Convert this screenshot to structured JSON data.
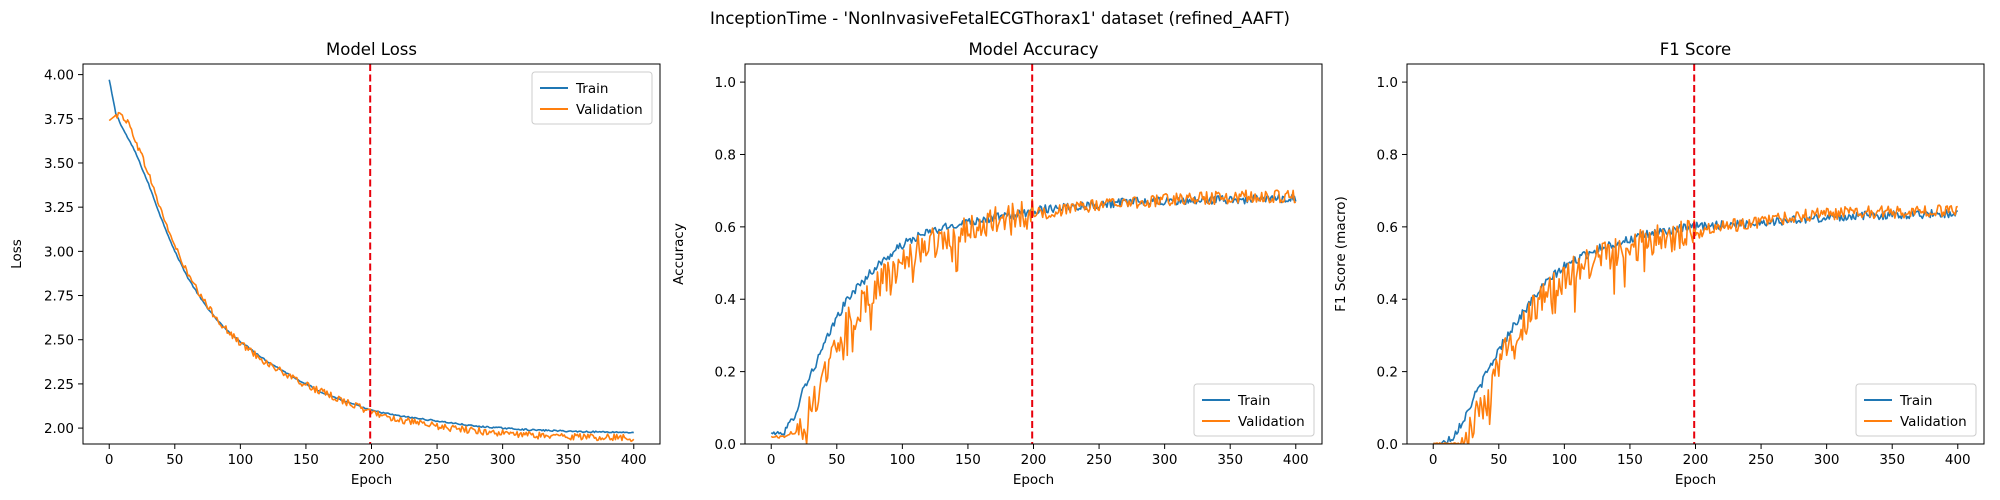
{
  "figure": {
    "suptitle": "InceptionTime - 'NonInvasiveFetalECGThorax1' dataset (refined_AAFT)"
  },
  "colors": {
    "train": "#1f77b4",
    "validation": "#ff7f0e",
    "marker_line": "#e8000b"
  },
  "chart_data": [
    {
      "type": "line",
      "title": "Model Loss",
      "xlabel": "Epoch",
      "ylabel": "Loss",
      "xlim": [
        -20,
        420
      ],
      "ylim": [
        1.91,
        4.06
      ],
      "xticks": [
        0,
        50,
        100,
        150,
        200,
        250,
        300,
        350,
        400
      ],
      "yticks": [
        2.0,
        2.25,
        2.5,
        2.75,
        3.0,
        3.25,
        3.5,
        3.75,
        4.0
      ],
      "ytick_decimals": 2,
      "vline_x": 199,
      "legend": "top-right",
      "grid": false,
      "series": [
        {
          "name": "Train",
          "x": [
            0,
            5,
            10,
            20,
            30,
            40,
            50,
            60,
            70,
            80,
            90,
            100,
            120,
            140,
            160,
            180,
            200,
            220,
            240,
            260,
            280,
            300,
            320,
            340,
            360,
            380,
            400
          ],
          "values": [
            3.97,
            3.78,
            3.7,
            3.56,
            3.38,
            3.18,
            3.0,
            2.85,
            2.73,
            2.63,
            2.55,
            2.49,
            2.38,
            2.29,
            2.21,
            2.15,
            2.1,
            2.07,
            2.05,
            2.03,
            2.01,
            2.0,
            1.99,
            1.985,
            1.98,
            1.978,
            1.975
          ]
        },
        {
          "name": "Validation",
          "x": [
            0,
            5,
            10,
            15,
            20,
            30,
            40,
            50,
            60,
            70,
            80,
            90,
            100,
            120,
            140,
            160,
            180,
            200,
            220,
            240,
            260,
            280,
            300,
            320,
            340,
            360,
            380,
            400
          ],
          "values": [
            3.74,
            3.77,
            3.77,
            3.72,
            3.63,
            3.44,
            3.22,
            3.03,
            2.87,
            2.74,
            2.64,
            2.55,
            2.48,
            2.37,
            2.28,
            2.21,
            2.15,
            2.09,
            2.05,
            2.02,
            2.0,
            1.985,
            1.97,
            1.96,
            1.955,
            1.95,
            1.948,
            1.945
          ]
        }
      ]
    },
    {
      "type": "line",
      "title": "Model Accuracy",
      "xlabel": "Epoch",
      "ylabel": "Accuracy",
      "xlim": [
        -20,
        420
      ],
      "ylim": [
        0,
        1.05
      ],
      "xticks": [
        0,
        50,
        100,
        150,
        200,
        250,
        300,
        350,
        400
      ],
      "yticks": [
        0.0,
        0.2,
        0.4,
        0.6,
        0.8,
        1.0
      ],
      "ytick_decimals": 1,
      "vline_x": 199,
      "legend": "bottom-right",
      "grid": false,
      "series": [
        {
          "name": "Train",
          "x": [
            0,
            5,
            10,
            15,
            20,
            25,
            30,
            40,
            50,
            60,
            70,
            80,
            90,
            100,
            110,
            120,
            130,
            140,
            150,
            160,
            170,
            180,
            190,
            200,
            220,
            240,
            260,
            280,
            300,
            320,
            340,
            360,
            380,
            400
          ],
          "values": [
            0.03,
            0.03,
            0.03,
            0.06,
            0.1,
            0.16,
            0.19,
            0.27,
            0.35,
            0.41,
            0.45,
            0.49,
            0.52,
            0.55,
            0.57,
            0.585,
            0.595,
            0.605,
            0.615,
            0.62,
            0.625,
            0.63,
            0.635,
            0.645,
            0.655,
            0.66,
            0.665,
            0.67,
            0.67,
            0.672,
            0.675,
            0.675,
            0.677,
            0.68
          ]
        },
        {
          "name": "Validation",
          "x": [
            0,
            5,
            10,
            15,
            20,
            25,
            30,
            40,
            50,
            60,
            70,
            80,
            90,
            100,
            110,
            120,
            130,
            140,
            150,
            160,
            170,
            180,
            190,
            200,
            220,
            240,
            260,
            280,
            300,
            320,
            340,
            360,
            380,
            400
          ],
          "values": [
            0.02,
            0.02,
            0.02,
            0.03,
            0.03,
            0.06,
            0.1,
            0.18,
            0.27,
            0.34,
            0.39,
            0.44,
            0.47,
            0.5,
            0.53,
            0.55,
            0.57,
            0.58,
            0.6,
            0.61,
            0.62,
            0.625,
            0.63,
            0.635,
            0.645,
            0.655,
            0.665,
            0.67,
            0.675,
            0.68,
            0.68,
            0.685,
            0.685,
            0.685
          ]
        }
      ]
    },
    {
      "type": "line",
      "title": "F1 Score",
      "xlabel": "Epoch",
      "ylabel": "F1 Score (macro)",
      "xlim": [
        -20,
        420
      ],
      "ylim": [
        0,
        1.05
      ],
      "xticks": [
        0,
        50,
        100,
        150,
        200,
        250,
        300,
        350,
        400
      ],
      "yticks": [
        0.0,
        0.2,
        0.4,
        0.6,
        0.8,
        1.0
      ],
      "ytick_decimals": 1,
      "vline_x": 199,
      "legend": "bottom-right",
      "grid": false,
      "series": [
        {
          "name": "Train",
          "x": [
            0,
            5,
            10,
            15,
            20,
            25,
            30,
            40,
            50,
            60,
            70,
            80,
            90,
            100,
            110,
            120,
            130,
            140,
            150,
            160,
            170,
            180,
            190,
            200,
            220,
            240,
            260,
            280,
            300,
            320,
            340,
            360,
            380,
            400
          ],
          "values": [
            0.0,
            0.0,
            0.01,
            0.02,
            0.05,
            0.08,
            0.12,
            0.19,
            0.26,
            0.32,
            0.37,
            0.42,
            0.46,
            0.49,
            0.51,
            0.53,
            0.545,
            0.555,
            0.565,
            0.575,
            0.585,
            0.59,
            0.595,
            0.6,
            0.605,
            0.61,
            0.615,
            0.62,
            0.625,
            0.63,
            0.632,
            0.634,
            0.636,
            0.638
          ]
        },
        {
          "name": "Validation",
          "x": [
            0,
            5,
            10,
            15,
            20,
            25,
            30,
            40,
            50,
            60,
            70,
            80,
            90,
            100,
            110,
            120,
            130,
            140,
            150,
            160,
            170,
            180,
            190,
            200,
            220,
            240,
            260,
            280,
            300,
            320,
            340,
            360,
            380,
            400
          ],
          "values": [
            0.0,
            0.0,
            0.0,
            0.0,
            0.0,
            0.02,
            0.05,
            0.13,
            0.22,
            0.29,
            0.34,
            0.39,
            0.43,
            0.46,
            0.48,
            0.5,
            0.515,
            0.53,
            0.54,
            0.55,
            0.56,
            0.565,
            0.575,
            0.585,
            0.6,
            0.61,
            0.62,
            0.63,
            0.635,
            0.64,
            0.64,
            0.642,
            0.645,
            0.645
          ]
        }
      ]
    }
  ]
}
